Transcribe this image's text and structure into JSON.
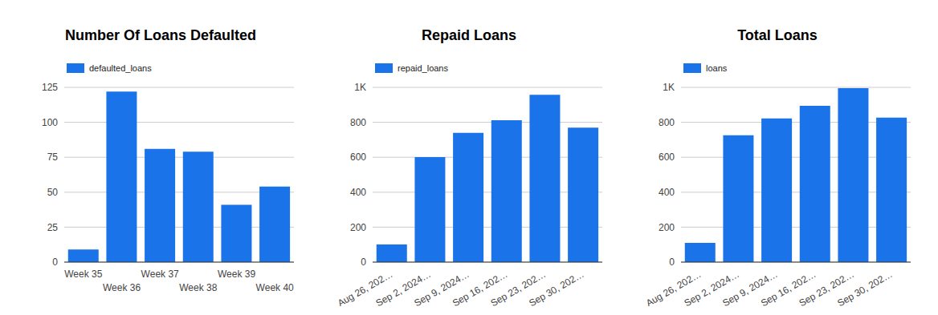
{
  "chart_data": [
    {
      "type": "bar",
      "title": "Number Of Loans Defaulted",
      "categories": [
        "Week 35",
        "Week 36",
        "Week 37",
        "Week 38",
        "Week 39",
        "Week 40"
      ],
      "series": [
        {
          "name": "defaulted_loans",
          "color": "#1a73e8",
          "values": [
            9,
            122,
            81,
            79,
            41,
            54
          ]
        }
      ],
      "ylim": [
        0,
        125
      ],
      "yticks": [
        0,
        25,
        50,
        75,
        100,
        125
      ],
      "grid": true
    },
    {
      "type": "bar",
      "title": "Repaid Loans",
      "categories": [
        "Aug 26, 202…",
        "Sep 2, 2024…",
        "Sep 9, 2024…",
        "Sep 16, 202…",
        "Sep 23, 202…",
        "Sep 30, 202…"
      ],
      "series": [
        {
          "name": "repaid_loans",
          "color": "#1a73e8",
          "values": [
            101,
            601,
            740,
            812,
            957,
            769
          ]
        }
      ],
      "ylim": [
        0,
        1000
      ],
      "yticks": [
        0,
        200,
        400,
        600,
        800,
        {
          "value": 1000,
          "label": "1K"
        }
      ],
      "grid": true
    },
    {
      "type": "bar",
      "title": "Total Loans",
      "categories": [
        "Aug 26, 202…",
        "Sep 2, 2024…",
        "Sep 9, 2024…",
        "Sep 16, 202…",
        "Sep 23, 202…",
        "Sep 30, 202…"
      ],
      "series": [
        {
          "name": "loans",
          "color": "#1a73e8",
          "values": [
            110,
            726,
            822,
            894,
            995,
            827
          ]
        }
      ],
      "ylim": [
        0,
        1000
      ],
      "yticks": [
        0,
        200,
        400,
        600,
        800,
        {
          "value": 1000,
          "label": "1K"
        }
      ],
      "grid": true
    }
  ]
}
